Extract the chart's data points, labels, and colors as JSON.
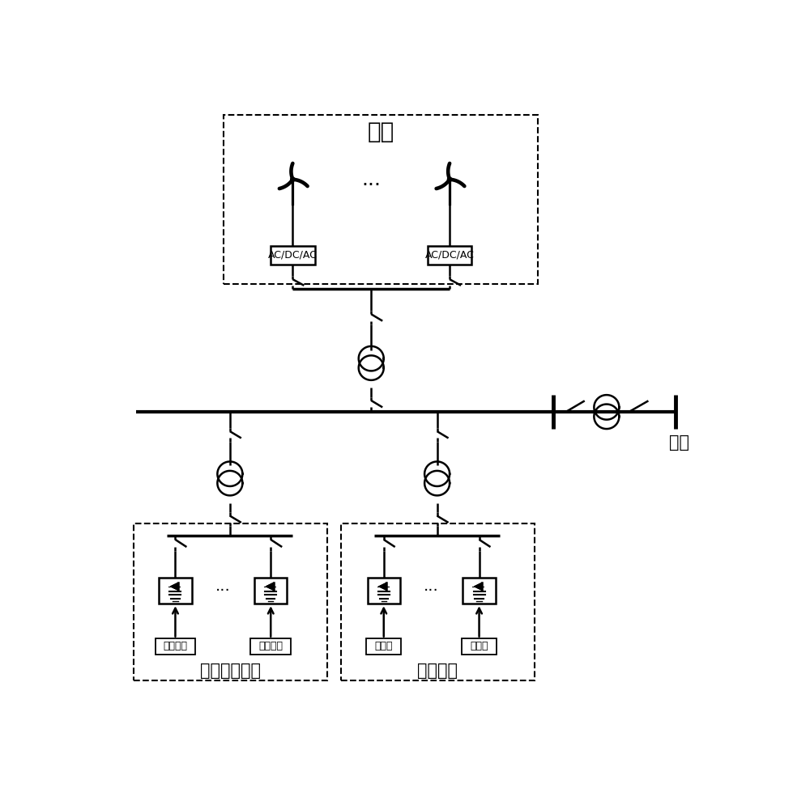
{
  "bg_color": "#ffffff",
  "line_color": "#000000",
  "lw": 1.8,
  "lw_thick": 2.5,
  "lw_dash": 1.5,
  "title_fengdian": "风电",
  "label_acdc1": "AC/DC/AC",
  "label_acdc2": "AC/DC/AC",
  "label_sc_storage": "超级电容储能",
  "label_sc1": "超级电容",
  "label_sc2": "超级电容",
  "label_bat_storage": "电池储能",
  "label_bat1": "电池组",
  "label_bat2": "电池组",
  "label_grid": "电网",
  "figsize": [
    10.0,
    9.9
  ],
  "dpi": 100,
  "xlim": [
    0,
    10
  ],
  "ylim": [
    0,
    10
  ]
}
